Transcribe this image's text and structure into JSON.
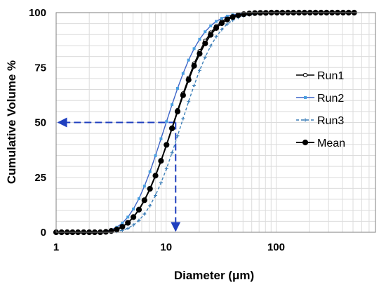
{
  "chart_data": {
    "type": "line",
    "xlabel": "Diameter (μm)",
    "ylabel": "Cumulative Volume %",
    "x_scale": "log",
    "xlim": [
      1,
      800
    ],
    "ylim": [
      0,
      100
    ],
    "x_ticks": [
      1,
      10,
      100
    ],
    "x_tick_labels": [
      "1",
      "10",
      "100"
    ],
    "y_ticks": [
      0,
      25,
      50,
      75,
      100
    ],
    "y_tick_labels": [
      "0",
      "25",
      "50",
      "75",
      "100"
    ],
    "grid": true,
    "legend_position": "right",
    "x": [
      1.0,
      1.12,
      1.26,
      1.41,
      1.58,
      1.78,
      2.0,
      2.24,
      2.52,
      2.83,
      3.17,
      3.56,
      4.0,
      4.49,
      5.04,
      5.66,
      6.35,
      7.13,
      8.0,
      8.98,
      10.08,
      11.31,
      12.7,
      14.25,
      16.0,
      17.96,
      20.16,
      22.62,
      25.4,
      28.51,
      32.0,
      35.92,
      40.32,
      45.25,
      50.8,
      57.02,
      64.0,
      71.84,
      80.63,
      90.51,
      101.6,
      114.0,
      128.0,
      143.7,
      161.3,
      181.0,
      203.2,
      228.1,
      256.0,
      287.4,
      322.5,
      362.0,
      406.4,
      456.1,
      512.0
    ],
    "series": [
      {
        "name": "Run1",
        "color": "#000000",
        "line_style": "solid",
        "marker": "open-circle",
        "values": [
          0,
          0,
          0,
          0,
          0,
          0,
          0,
          0,
          0,
          0.2,
          0.6,
          1.3,
          2.5,
          4.3,
          6.8,
          10.2,
          14.4,
          19.6,
          25.6,
          32.5,
          39.9,
          47.7,
          55.6,
          63.2,
          70.3,
          76.8,
          82.4,
          87.1,
          90.9,
          93.8,
          96.0,
          97.5,
          98.5,
          99.1,
          99.5,
          99.7,
          99.8,
          99.9,
          99.9,
          100,
          100,
          100,
          100,
          100,
          100,
          100,
          100,
          100,
          100,
          100,
          100,
          100,
          100,
          100,
          100
        ]
      },
      {
        "name": "Run2",
        "color": "#3d64c8",
        "line_style": "solid",
        "marker": "square",
        "values": [
          0,
          0,
          0,
          0,
          0,
          0,
          0,
          0,
          0.1,
          0.4,
          1.1,
          2.3,
          4.2,
          6.9,
          10.6,
          15.3,
          21.0,
          27.6,
          34.9,
          42.6,
          50.4,
          58.1,
          65.5,
          72.3,
          78.4,
          83.6,
          87.9,
          91.3,
          94.0,
          96.0,
          97.4,
          98.4,
          99.0,
          99.4,
          99.7,
          99.8,
          99.9,
          100,
          100,
          100,
          100,
          100,
          100,
          100,
          100,
          100,
          100,
          100,
          100,
          100,
          100,
          100,
          100,
          100,
          100
        ]
      },
      {
        "name": "Run3",
        "color": "#3d7fb8",
        "line_style": "dashed",
        "marker": "plus",
        "values": [
          0,
          0,
          0,
          0,
          0,
          0,
          0,
          0,
          0,
          0,
          0.1,
          0.4,
          0.9,
          1.8,
          3.3,
          5.4,
          8.3,
          12.1,
          16.8,
          22.5,
          29.0,
          36.2,
          43.9,
          51.7,
          59.5,
          66.9,
          73.7,
          79.7,
          84.8,
          89.0,
          92.3,
          94.8,
          96.6,
          97.8,
          98.6,
          99.1,
          99.4,
          99.6,
          99.7,
          99.8,
          99.9,
          99.9,
          100,
          100,
          100,
          100,
          100,
          100,
          100,
          100,
          100,
          100,
          100,
          100,
          100
        ]
      },
      {
        "name": "Mean",
        "color": "#000000",
        "line_style": "solid",
        "marker": "filled-circle",
        "values": [
          0,
          0,
          0,
          0,
          0,
          0,
          0,
          0,
          0,
          0.2,
          0.6,
          1.3,
          2.5,
          4.3,
          6.9,
          10.3,
          14.6,
          19.8,
          25.8,
          32.5,
          39.8,
          47.3,
          55.0,
          62.4,
          69.4,
          75.8,
          81.3,
          86.0,
          89.9,
          93.0,
          95.2,
          96.9,
          98.0,
          98.8,
          99.3,
          99.6,
          99.8,
          99.9,
          99.9,
          100,
          100,
          100,
          100,
          100,
          100,
          100,
          100,
          100,
          100,
          100,
          100,
          100,
          100,
          100,
          100
        ]
      }
    ],
    "annotation": {
      "type": "dashed-arrows",
      "color": "#1f3fbf",
      "x_value": 12.2,
      "y_value": 50
    }
  }
}
